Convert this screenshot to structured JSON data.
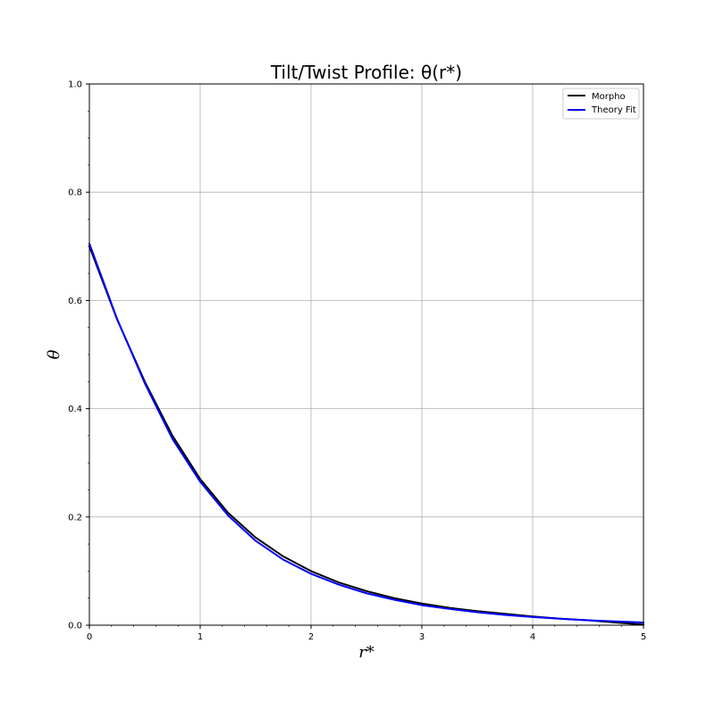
{
  "chart_data": {
    "type": "line",
    "title": "Tilt/Twist Profile: θ(r*)",
    "xlabel": "r*",
    "ylabel": "θ",
    "xlim": [
      0,
      5
    ],
    "ylim": [
      0,
      1.0
    ],
    "x_ticks": [
      "0",
      "1",
      "2",
      "3",
      "4",
      "5"
    ],
    "y_ticks": [
      "0.0",
      "0.2",
      "0.4",
      "0.6",
      "0.8",
      "1.0"
    ],
    "grid": true,
    "legend_position": "top-right",
    "series": [
      {
        "name": "Morpho",
        "color": "#000000",
        "x": [
          0,
          0.25,
          0.5,
          0.75,
          1.0,
          1.25,
          1.5,
          1.75,
          2.0,
          2.25,
          2.5,
          2.75,
          3.0,
          3.25,
          3.5,
          3.75,
          4.0,
          4.25,
          4.5,
          4.75,
          5.0
        ],
        "y": [
          0.7,
          0.565,
          0.45,
          0.35,
          0.27,
          0.208,
          0.162,
          0.127,
          0.1,
          0.079,
          0.063,
          0.05,
          0.04,
          0.032,
          0.026,
          0.021,
          0.016,
          0.012,
          0.009,
          0.005,
          0.001
        ]
      },
      {
        "name": "Theory Fit",
        "color": "#0000ff",
        "x": [
          0,
          0.25,
          0.5,
          0.75,
          1.0,
          1.25,
          1.5,
          1.75,
          2.0,
          2.25,
          2.5,
          2.75,
          3.0,
          3.25,
          3.5,
          3.75,
          4.0,
          4.25,
          4.5,
          4.75,
          5.0
        ],
        "y": [
          0.705,
          0.566,
          0.447,
          0.344,
          0.265,
          0.203,
          0.156,
          0.121,
          0.095,
          0.075,
          0.059,
          0.047,
          0.037,
          0.03,
          0.024,
          0.019,
          0.015,
          0.012,
          0.009,
          0.007,
          0.005
        ]
      }
    ]
  }
}
